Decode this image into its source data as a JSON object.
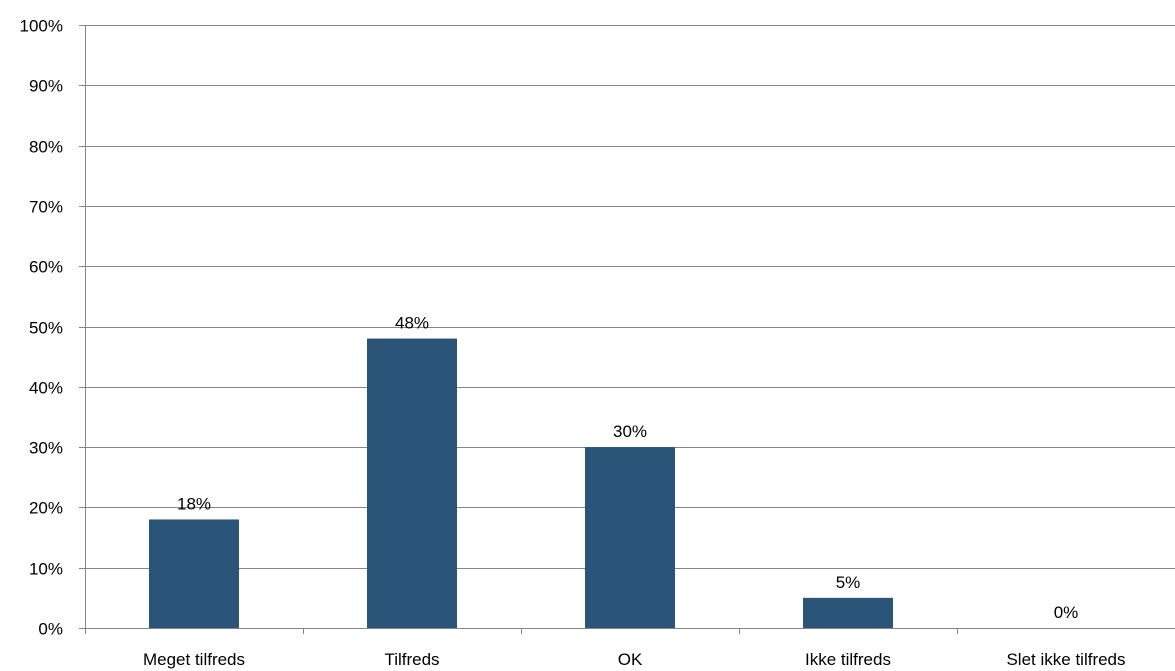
{
  "chart_data": {
    "type": "bar",
    "categories": [
      "Meget tilfreds",
      "Tilfreds",
      "OK",
      "Ikke tilfreds",
      "Slet ikke tilfreds"
    ],
    "values": [
      18,
      48,
      30,
      5,
      0
    ],
    "data_labels": [
      "18%",
      "48%",
      "30%",
      "5%",
      "0%"
    ],
    "ylim": [
      0,
      100
    ],
    "yticks": [
      0,
      10,
      20,
      30,
      40,
      50,
      60,
      70,
      80,
      90,
      100
    ],
    "ytick_labels": [
      "0%",
      "10%",
      "20%",
      "30%",
      "40%",
      "50%",
      "60%",
      "70%",
      "80%",
      "90%",
      "100%"
    ],
    "title": "",
    "xlabel": "",
    "ylabel": "",
    "grid": true,
    "legend": "none",
    "bar_color": "#2a5478",
    "grid_color": "#868686"
  }
}
